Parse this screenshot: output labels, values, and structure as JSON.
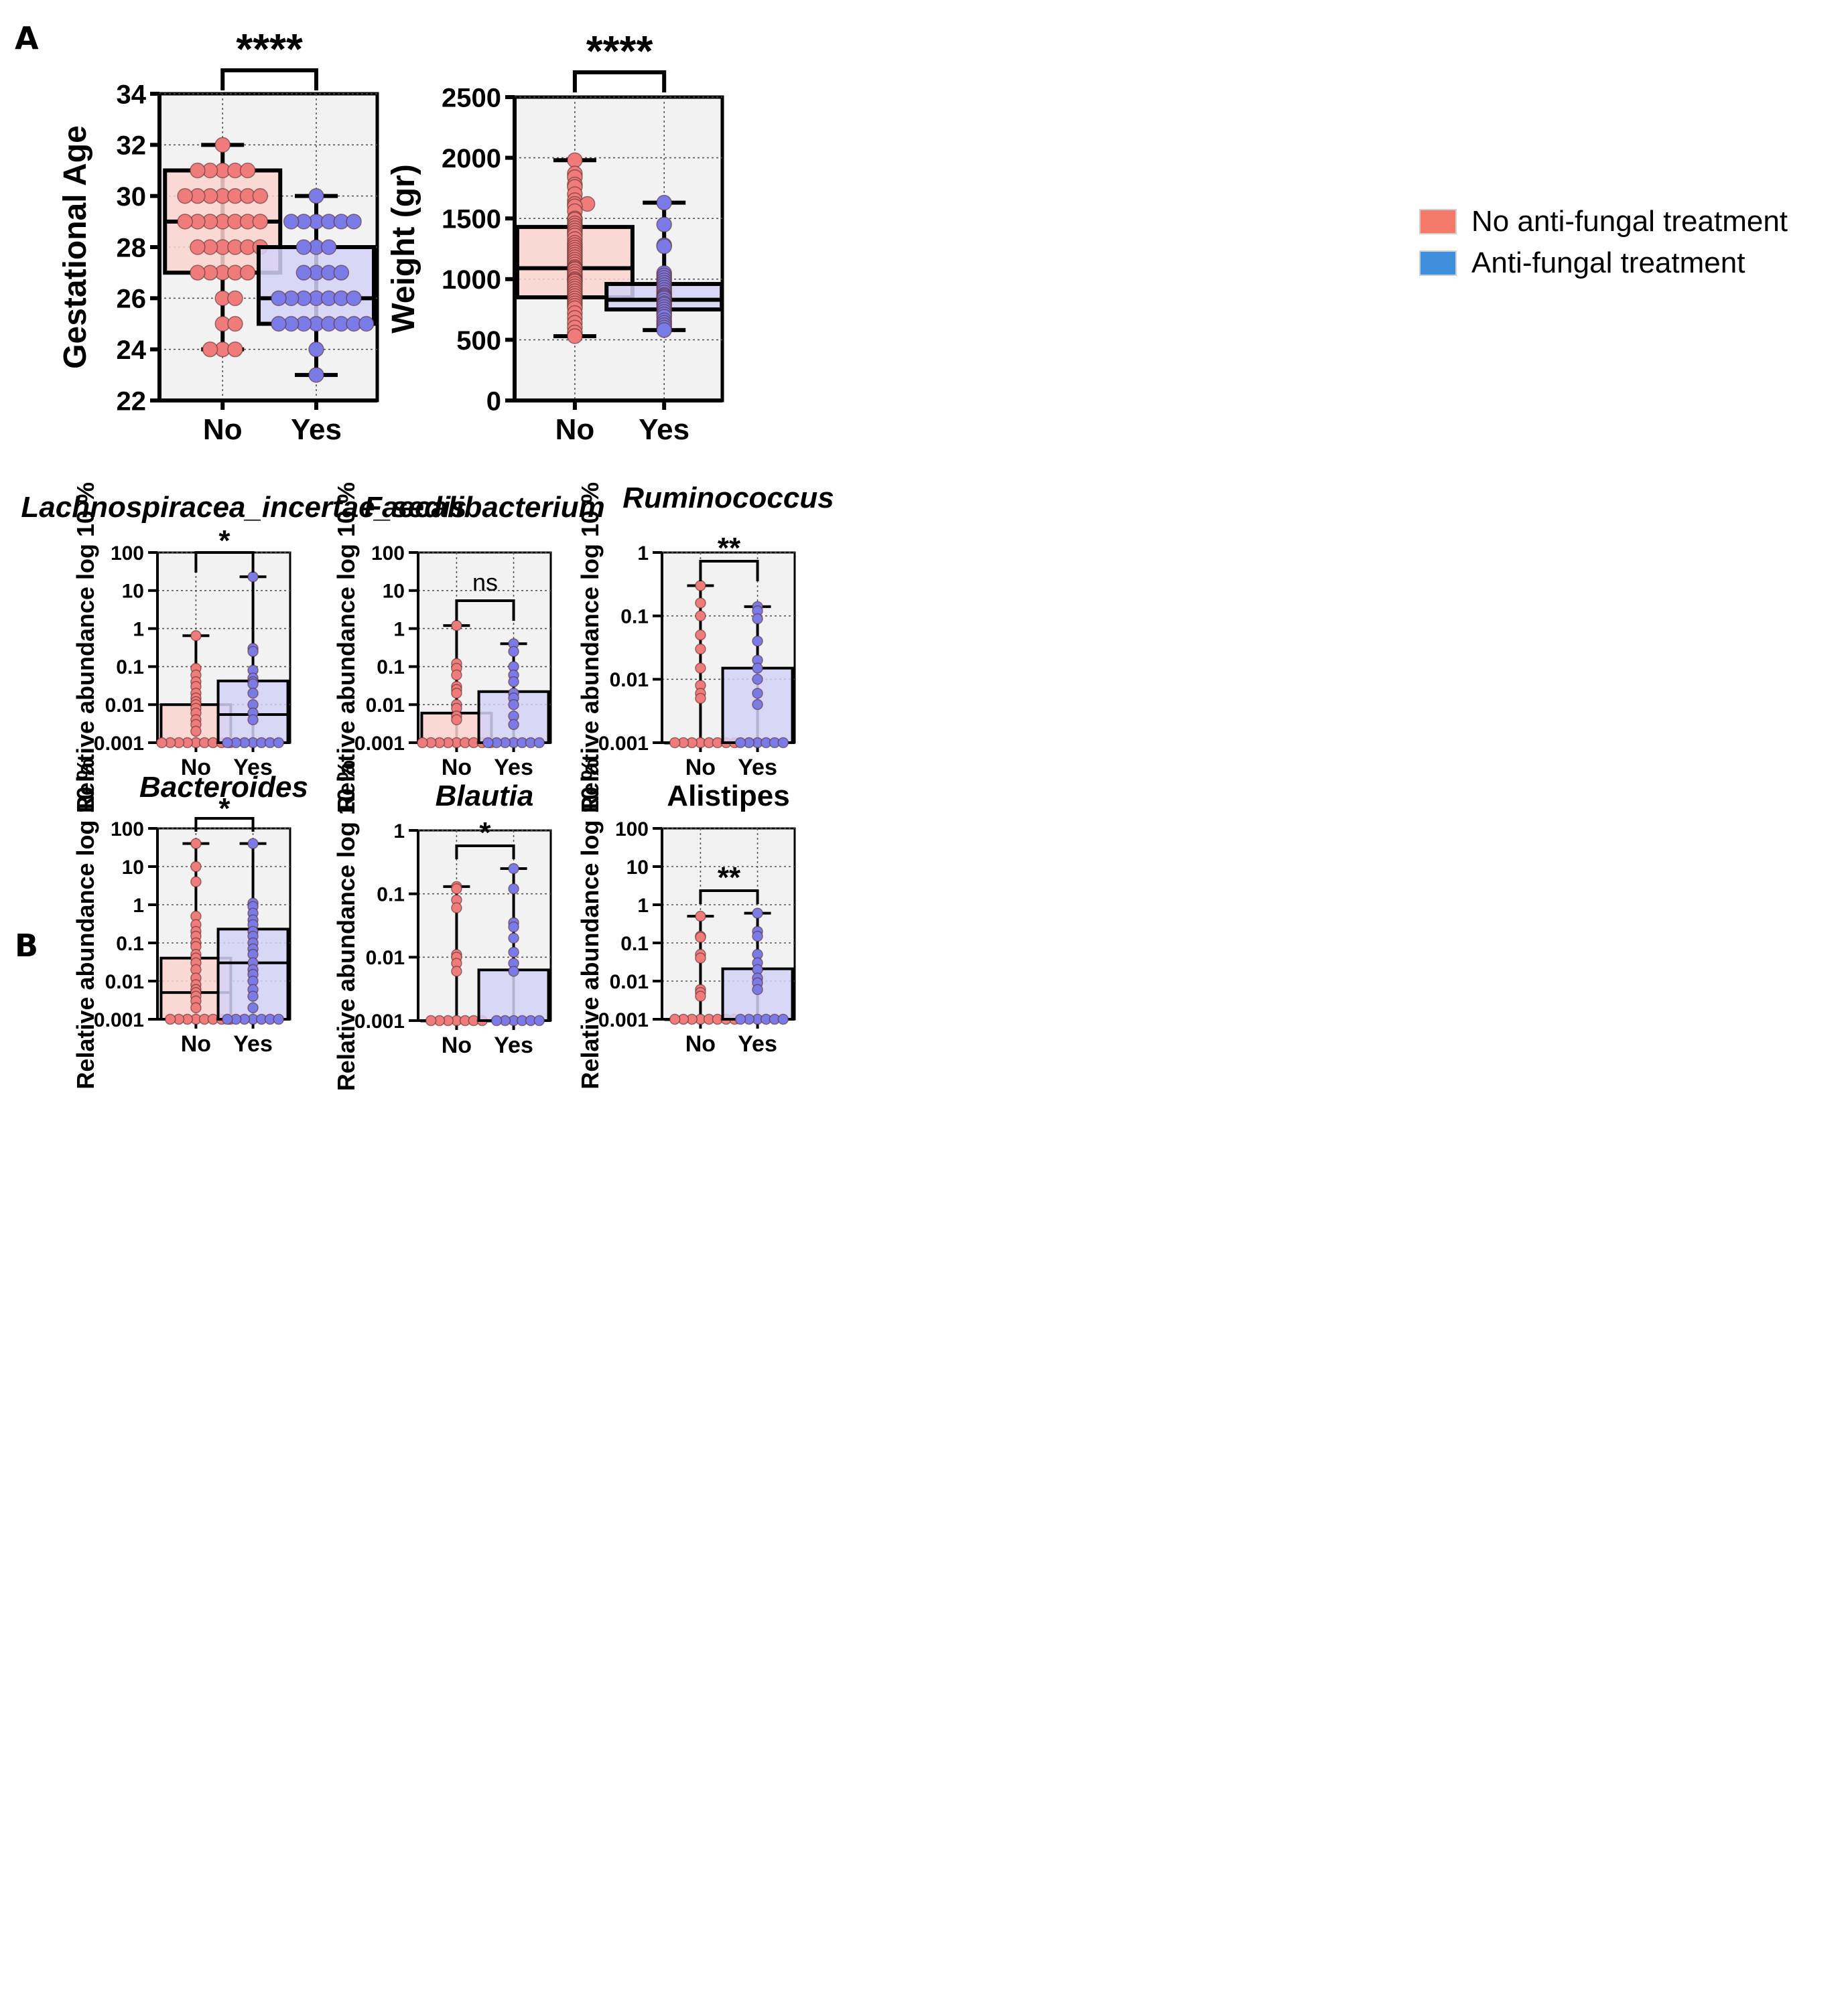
{
  "figure": {
    "panel_labels": [
      "A",
      "B"
    ],
    "legend": [
      {
        "label": "No anti-fungal treatment",
        "color": "#f47b68"
      },
      {
        "label": "Anti-fungal treatment",
        "color": "#3f8fdc"
      }
    ],
    "colors": {
      "no_box_fill": "#fcd3cf",
      "yes_box_fill": "#d3d3f7",
      "no_point": "#f07b7b",
      "yes_point": "#7b7be8",
      "plot_bg": "#f2f2f2"
    }
  },
  "chart_data": [
    {
      "type": "box",
      "panel": "A",
      "title": "",
      "ylabel": "Gestational Age",
      "scale": "linear",
      "ylim": [
        22,
        34
      ],
      "yticks": [
        22,
        24,
        26,
        28,
        30,
        32,
        34
      ],
      "ytick_labels": [
        "22",
        "24",
        "26",
        "28",
        "30",
        "32",
        "34"
      ],
      "categories": [
        "No",
        "Yes"
      ],
      "boxes": [
        {
          "name": "No",
          "min": 24,
          "q1": 27,
          "median": 29,
          "q3": 31,
          "max": 32
        },
        {
          "name": "Yes",
          "min": 23,
          "q1": 25,
          "median": 26,
          "q3": 28,
          "max": 30
        }
      ],
      "points": [
        [
          32,
          31,
          31,
          31,
          31,
          31,
          30,
          30,
          30,
          30,
          30,
          30,
          30,
          29,
          29,
          29,
          29,
          29,
          29,
          29,
          28,
          28,
          28,
          28,
          28,
          28,
          27,
          27,
          27,
          27,
          27,
          26,
          26,
          25,
          25,
          24,
          24,
          24
        ],
        [
          30,
          29,
          29,
          29,
          29,
          29,
          29,
          28,
          28,
          28,
          27,
          27,
          27,
          27,
          26,
          26,
          26,
          26,
          26,
          26,
          26,
          25,
          25,
          25,
          25,
          25,
          25,
          25,
          25,
          24,
          23
        ]
      ],
      "significance": "****"
    },
    {
      "type": "box",
      "panel": "A",
      "title": "",
      "ylabel": "Weight (gr)",
      "scale": "linear",
      "ylim": [
        0,
        2500
      ],
      "yticks": [
        0,
        500,
        1000,
        1500,
        2000,
        2500
      ],
      "ytick_labels": [
        "0",
        "500",
        "1000",
        "1500",
        "2000",
        "2500"
      ],
      "categories": [
        "No",
        "Yes"
      ],
      "boxes": [
        {
          "name": "No",
          "min": 530,
          "q1": 850,
          "median": 1090,
          "q3": 1430,
          "max": 1980
        },
        {
          "name": "Yes",
          "min": 580,
          "q1": 750,
          "median": 830,
          "q3": 960,
          "max": 1630
        }
      ],
      "points": [
        [
          1980,
          1870,
          1840,
          1780,
          1760,
          1700,
          1650,
          1620,
          1620,
          1600,
          1560,
          1500,
          1490,
          1460,
          1440,
          1420,
          1400,
          1380,
          1360,
          1330,
          1300,
          1280,
          1260,
          1240,
          1220,
          1200,
          1180,
          1160,
          1140,
          1120,
          1100,
          1090,
          1080,
          1060,
          1040,
          1020,
          1000,
          990,
          980,
          960,
          940,
          920,
          900,
          880,
          860,
          840,
          820,
          800,
          780,
          760,
          720,
          680,
          640,
          600,
          560,
          530
        ],
        [
          1630,
          1450,
          1280,
          1270,
          1050,
          1030,
          1010,
          990,
          970,
          950,
          930,
          910,
          890,
          870,
          860,
          850,
          840,
          820,
          800,
          790,
          770,
          750,
          730,
          710,
          690,
          660,
          640,
          620,
          600,
          580
        ]
      ],
      "significance": "****"
    },
    {
      "type": "box",
      "panel": "B",
      "title": "Lachnospiracea_incertae_sedis",
      "title_italic": true,
      "ylabel": "Relative abundance log 10 %",
      "scale": "log",
      "ylim": [
        0.001,
        100
      ],
      "yticks": [
        0.001,
        0.01,
        0.1,
        1,
        10,
        100
      ],
      "ytick_labels": [
        "0.001",
        "0.01",
        "0.1",
        "1",
        "10",
        "100"
      ],
      "categories": [
        "No",
        "Yes"
      ],
      "boxes": [
        {
          "name": "No",
          "min": 0.001,
          "q1": 0.001,
          "median": 0.001,
          "q3": 0.01,
          "max": 0.65
        },
        {
          "name": "Yes",
          "min": 0.001,
          "q1": 0.001,
          "median": 0.0055,
          "q3": 0.042,
          "max": 23
        }
      ],
      "points": [
        [
          0.65,
          0.09,
          0.06,
          0.04,
          0.03,
          0.02,
          0.015,
          0.012,
          0.01,
          0.008,
          0.006,
          0.004,
          0.003,
          0.002,
          0.001,
          0.001,
          0.001,
          0.001,
          0.001,
          0.001,
          0.001,
          0.001,
          0.001
        ],
        [
          23,
          0.3,
          0.25,
          0.08,
          0.05,
          0.04,
          0.035,
          0.02,
          0.01,
          0.006,
          0.004,
          0.001,
          0.001,
          0.001,
          0.001,
          0.001,
          0.001,
          0.001
        ]
      ],
      "significance": "*"
    },
    {
      "type": "box",
      "panel": "B",
      "title": "Faecalibacterium",
      "title_italic": true,
      "ylabel": "Relative abundance log 10 %",
      "scale": "log",
      "ylim": [
        0.001,
        100
      ],
      "yticks": [
        0.001,
        0.01,
        0.1,
        1,
        10,
        100
      ],
      "ytick_labels": [
        "0.001",
        "0.01",
        "0.1",
        "1",
        "10",
        "100"
      ],
      "categories": [
        "No",
        "Yes"
      ],
      "boxes": [
        {
          "name": "No",
          "min": 0.001,
          "q1": 0.001,
          "median": 0.001,
          "q3": 0.006,
          "max": 1.2
        },
        {
          "name": "Yes",
          "min": 0.001,
          "q1": 0.001,
          "median": 0.001,
          "q3": 0.022,
          "max": 0.4
        }
      ],
      "points": [
        [
          1.2,
          0.12,
          0.09,
          0.06,
          0.03,
          0.025,
          0.02,
          0.01,
          0.008,
          0.005,
          0.004,
          0.001,
          0.001,
          0.001,
          0.001,
          0.001,
          0.001,
          0.001,
          0.001,
          0.001
        ],
        [
          0.4,
          0.25,
          0.1,
          0.06,
          0.04,
          0.02,
          0.015,
          0.01,
          0.005,
          0.003,
          0.001,
          0.001,
          0.001,
          0.001,
          0.001,
          0.001,
          0.001
        ]
      ],
      "significance": "ns"
    },
    {
      "type": "box",
      "panel": "B",
      "title": "Ruminococcus",
      "title_italic": true,
      "ylabel": "Relative abundance log 10 %",
      "scale": "log",
      "ylim": [
        0.001,
        1
      ],
      "yticks": [
        0.001,
        0.01,
        0.1,
        1
      ],
      "ytick_labels": [
        "0.001",
        "0.01",
        "0.1",
        "1"
      ],
      "categories": [
        "No",
        "Yes"
      ],
      "boxes": [
        {
          "name": "No",
          "min": 0.001,
          "q1": 0.001,
          "median": 0.001,
          "q3": 0.001,
          "max": 0.3
        },
        {
          "name": "Yes",
          "min": 0.001,
          "q1": 0.001,
          "median": 0.001,
          "q3": 0.015,
          "max": 0.14
        }
      ],
      "points": [
        [
          0.3,
          0.16,
          0.1,
          0.05,
          0.03,
          0.015,
          0.008,
          0.006,
          0.005,
          0.001,
          0.001,
          0.001,
          0.001,
          0.001,
          0.001,
          0.001,
          0.001
        ],
        [
          0.14,
          0.12,
          0.09,
          0.04,
          0.02,
          0.015,
          0.01,
          0.006,
          0.004,
          0.001,
          0.001,
          0.001,
          0.001,
          0.001,
          0.001
        ]
      ],
      "significance": "**"
    },
    {
      "type": "box",
      "panel": "B",
      "title": "Bacteroides",
      "title_italic": true,
      "ylabel": "Relative abundance log 10 %",
      "scale": "log",
      "ylim": [
        0.001,
        100
      ],
      "yticks": [
        0.001,
        0.01,
        0.1,
        1,
        10,
        100
      ],
      "ytick_labels": [
        "0.001",
        "0.01",
        "0.1",
        "1",
        "10",
        "100"
      ],
      "categories": [
        "No",
        "Yes"
      ],
      "boxes": [
        {
          "name": "No",
          "min": 0.001,
          "q1": 0.001,
          "median": 0.005,
          "q3": 0.04,
          "max": 40
        },
        {
          "name": "Yes",
          "min": 0.001,
          "q1": 0.001,
          "median": 0.03,
          "q3": 0.23,
          "max": 40
        }
      ],
      "points": [
        [
          40,
          10,
          4,
          0.5,
          0.3,
          0.2,
          0.15,
          0.1,
          0.08,
          0.05,
          0.04,
          0.03,
          0.02,
          0.012,
          0.008,
          0.006,
          0.005,
          0.004,
          0.003,
          0.002,
          0.001,
          0.001,
          0.001,
          0.001,
          0.001,
          0.001,
          0.001,
          0.001
        ],
        [
          40,
          1.1,
          0.9,
          0.6,
          0.4,
          0.3,
          0.2,
          0.15,
          0.1,
          0.07,
          0.05,
          0.03,
          0.02,
          0.015,
          0.01,
          0.006,
          0.004,
          0.002,
          0.001,
          0.001,
          0.001,
          0.001,
          0.001,
          0.001,
          0.001
        ]
      ],
      "significance": "*"
    },
    {
      "type": "box",
      "panel": "B",
      "title": "Blautia",
      "title_italic": true,
      "ylabel": "Relative abundance log 10 %",
      "scale": "log",
      "ylim": [
        0.001,
        1
      ],
      "yticks": [
        0.001,
        0.01,
        0.1,
        1
      ],
      "ytick_labels": [
        "0.001",
        "0.01",
        "0.1",
        "1"
      ],
      "categories": [
        "No",
        "Yes"
      ],
      "boxes": [
        {
          "name": "No",
          "min": 0.001,
          "q1": 0.001,
          "median": 0.001,
          "q3": 0.001,
          "max": 0.13
        },
        {
          "name": "Yes",
          "min": 0.001,
          "q1": 0.001,
          "median": 0.001,
          "q3": 0.0063,
          "max": 0.25
        }
      ],
      "points": [
        [
          0.13,
          0.12,
          0.08,
          0.06,
          0.011,
          0.01,
          0.008,
          0.006,
          0.001,
          0.001,
          0.001,
          0.001,
          0.001,
          0.001,
          0.001
        ],
        [
          0.25,
          0.12,
          0.035,
          0.03,
          0.02,
          0.012,
          0.008,
          0.006,
          0.001,
          0.001,
          0.001,
          0.001,
          0.001,
          0.001
        ]
      ],
      "significance": "*"
    },
    {
      "type": "box",
      "panel": "B",
      "title": "Alistipes",
      "title_italic": false,
      "ylabel": "Relative abundance log 10 %",
      "scale": "log",
      "ylim": [
        0.001,
        100
      ],
      "yticks": [
        0.001,
        0.01,
        0.1,
        1,
        10,
        100
      ],
      "ytick_labels": [
        "0.001",
        "0.01",
        "0.1",
        "1",
        "10",
        "100"
      ],
      "categories": [
        "No",
        "Yes"
      ],
      "boxes": [
        {
          "name": "No",
          "min": 0.001,
          "q1": 0.001,
          "median": 0.001,
          "q3": 0.001,
          "max": 0.5
        },
        {
          "name": "Yes",
          "min": 0.001,
          "q1": 0.001,
          "median": 0.001,
          "q3": 0.021,
          "max": 0.6
        }
      ],
      "points": [
        [
          0.5,
          0.15,
          0.14,
          0.05,
          0.04,
          0.006,
          0.005,
          0.004,
          0.001,
          0.001,
          0.001,
          0.001,
          0.001,
          0.001,
          0.001,
          0.001
        ],
        [
          0.6,
          0.2,
          0.15,
          0.05,
          0.03,
          0.02,
          0.012,
          0.009,
          0.006,
          0.001,
          0.001,
          0.001,
          0.001,
          0.001,
          0.001
        ]
      ],
      "significance": "**"
    }
  ]
}
